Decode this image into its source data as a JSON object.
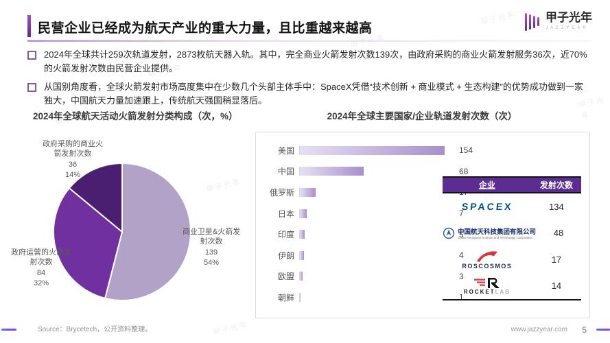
{
  "slide": {
    "title": "民营企业已经成为航天产业的重大力量，且比重越来越高",
    "bullets": [
      "2024年全球共计259次轨道发射，2873枚航天器入轨。其中，完全商业火箭发射次数139次，由政府采购的商业火箭发射服务36次，近70%的火箭发射次数由民营企业提供。",
      "从国别角度看，全球火箭发射市场高度集中在少数几个头部主体手中：SpaceX凭借“技术创新 + 商业模式 + 生态构建”的优势成功做到一家独大，中国航天力量加速跟上，传统航天强国稍显落后。"
    ]
  },
  "brand": {
    "name": "甲子光年",
    "latin": "JAZZYEAR"
  },
  "footer": {
    "source": "Source：Brycetech，公开资料整理。",
    "site": "www.jazzyear.com",
    "page": "5"
  },
  "accent_color": "#5b2d90",
  "chart_data": [
    {
      "type": "pie",
      "title": "2024年全球航天活动火箭发射分类构成（次，%）",
      "start": "12点钟方向顺时针",
      "slices": [
        {
          "label": "商业卫星&火箭发射次数",
          "value": 139,
          "pct": "54%",
          "color": "#b3a2c7"
        },
        {
          "label": "政府运营的火箭发射次数",
          "value": 84,
          "pct": "32%",
          "color": "#7030a0"
        },
        {
          "label": "政府采购的商业火箭发射次数",
          "value": 36,
          "pct": "14%",
          "color": "#4a1e71"
        }
      ]
    },
    {
      "type": "bar",
      "title": "2024年全球主要国家/企业轨道发射次数（次）",
      "orientation": "horizontal",
      "categories": [
        "美国",
        "中国",
        "俄罗斯",
        "日本",
        "印度",
        "伊朗",
        "欧盟",
        "朝鲜"
      ],
      "values": [
        154,
        68,
        17,
        7,
        5,
        4,
        3,
        1
      ],
      "xlim": [
        0,
        170
      ],
      "grid": false,
      "bar_gradient": [
        "#e7e0f4",
        "#a78fcc"
      ]
    },
    {
      "type": "table",
      "headers": [
        "企业",
        "发射次数"
      ],
      "header_bg": "#5b2d90",
      "rows": [
        {
          "company": "SPACEX",
          "launches": 134
        },
        {
          "company": "中国航天科技集团有限公司",
          "company_en": "China Aerospace Science and Technology Corporation",
          "launches": 48
        },
        {
          "company": "ROSCOSMOS",
          "launches": 17
        },
        {
          "company": "ROCKET LAB",
          "word1": "ROCKET",
          "word2": "LAB",
          "launches": 14
        }
      ]
    }
  ]
}
